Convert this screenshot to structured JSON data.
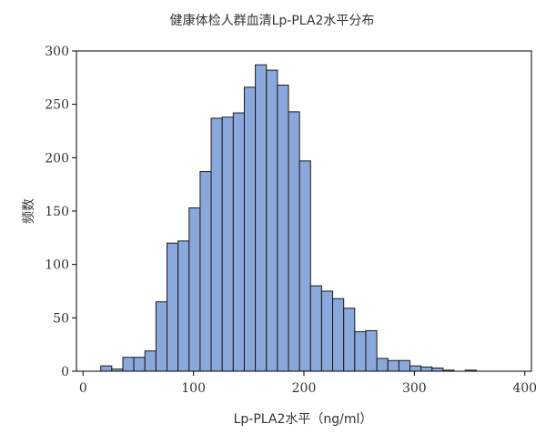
{
  "chart_data": {
    "type": "bar",
    "title": "健康体检人群血清Lp-PLA2水平分布",
    "xlabel": "Lp-PLA2水平（ng/ml）",
    "ylabel": "频数",
    "xlim": [
      -6,
      406
    ],
    "ylim": [
      0,
      300
    ],
    "x_ticks": [
      0,
      100,
      200,
      300,
      400
    ],
    "y_ticks": [
      0,
      50,
      100,
      150,
      200,
      250,
      300
    ],
    "bin_edges": [
      16,
      26,
      36,
      46,
      56,
      66,
      76,
      86,
      96,
      106,
      116,
      126,
      136,
      146,
      156,
      166,
      176,
      186,
      196,
      206,
      216,
      226,
      236,
      246,
      256,
      266,
      276,
      286,
      296,
      306,
      316,
      326,
      336,
      346,
      356,
      366
    ],
    "values": [
      5,
      2,
      13,
      13,
      19,
      65,
      120,
      122,
      153,
      187,
      237,
      238,
      242,
      266,
      287,
      282,
      268,
      243,
      197,
      80,
      75,
      68,
      59,
      37,
      38,
      12,
      10,
      10,
      5,
      4,
      3,
      1,
      0,
      1,
      0
    ],
    "bar_color": "#8aa8dc",
    "edge_color": "#1a1a1a",
    "grid": false,
    "legend": "none"
  }
}
